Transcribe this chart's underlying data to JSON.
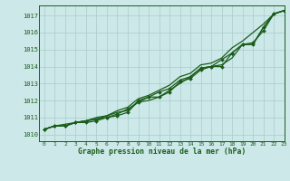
{
  "title": "Graphe pression niveau de la mer (hPa)",
  "bg_color": "#cce8e8",
  "grid_color": "#aacccc",
  "line_color": "#1a5c1a",
  "xlim": [
    -0.5,
    23
  ],
  "ylim": [
    1009.6,
    1017.6
  ],
  "yticks": [
    1010,
    1011,
    1012,
    1013,
    1014,
    1015,
    1016,
    1017
  ],
  "xticks": [
    0,
    1,
    2,
    3,
    4,
    5,
    6,
    7,
    8,
    9,
    10,
    11,
    12,
    13,
    14,
    15,
    16,
    17,
    18,
    19,
    20,
    21,
    22,
    23
  ],
  "series": [
    [
      1010.3,
      1010.5,
      1010.5,
      1010.7,
      1010.7,
      1010.8,
      1011.0,
      1011.1,
      1011.3,
      1012.0,
      1012.2,
      1012.2,
      1012.5,
      1013.1,
      1013.3,
      1013.8,
      1014.0,
      1014.0,
      1014.8,
      1015.3,
      1015.3,
      1016.3,
      1017.1,
      1017.3
    ],
    [
      1010.3,
      1010.5,
      1010.6,
      1010.7,
      1010.8,
      1010.9,
      1011.1,
      1011.3,
      1011.4,
      1011.9,
      1012.0,
      1012.2,
      1012.6,
      1013.0,
      1013.4,
      1013.9,
      1014.0,
      1014.1,
      1014.5,
      1015.3,
      1015.3,
      1016.3,
      1017.1,
      1017.3
    ],
    [
      1010.3,
      1010.5,
      1010.5,
      1010.7,
      1010.8,
      1010.9,
      1011.0,
      1011.2,
      1011.5,
      1011.9,
      1012.2,
      1012.5,
      1012.7,
      1013.2,
      1013.4,
      1013.9,
      1014.0,
      1014.4,
      1014.8,
      1015.3,
      1015.4,
      1016.1,
      1017.1,
      1017.3
    ],
    [
      1010.3,
      1010.5,
      1010.5,
      1010.7,
      1010.8,
      1011.0,
      1011.1,
      1011.4,
      1011.6,
      1012.1,
      1012.3,
      1012.6,
      1012.9,
      1013.4,
      1013.6,
      1014.1,
      1014.2,
      1014.5,
      1015.1,
      1015.5,
      1016.0,
      1016.5,
      1017.1,
      1017.3
    ]
  ],
  "marker_series": [
    0,
    2
  ],
  "marker": "D",
  "marker_size": 2.0,
  "linewidth": 0.9
}
